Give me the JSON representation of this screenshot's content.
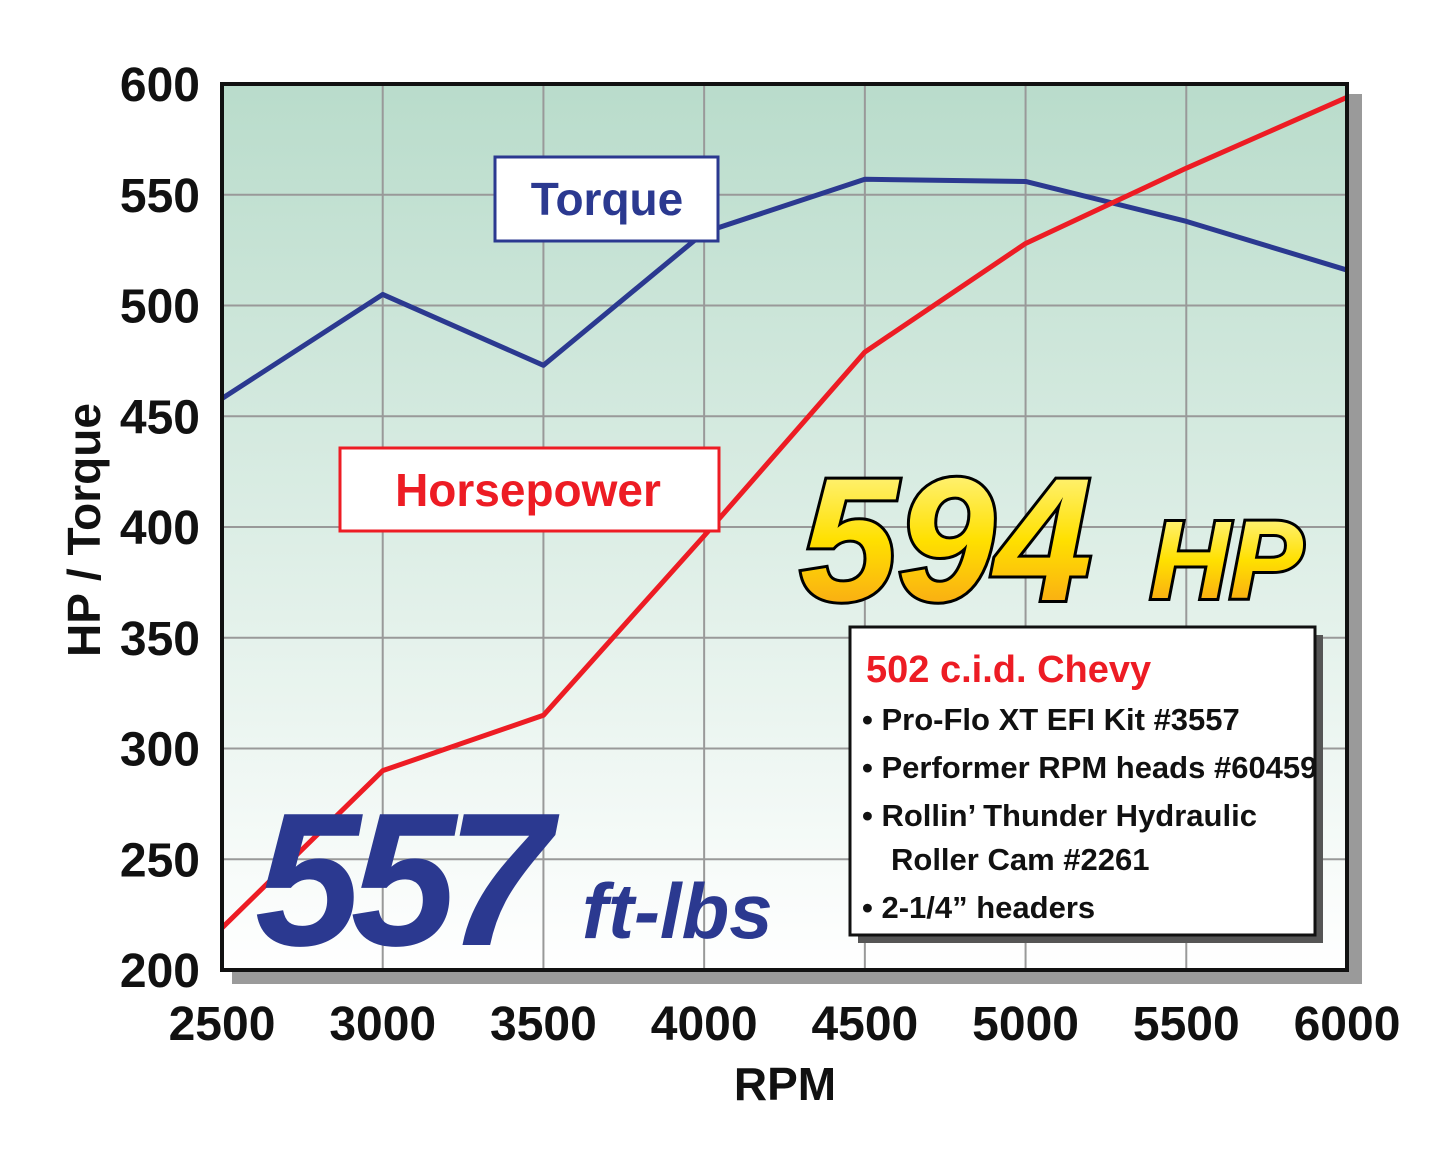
{
  "chart_data": {
    "type": "line",
    "xlabel": "RPM",
    "ylabel": "HP / Torque",
    "x": [
      2500,
      3000,
      3500,
      4000,
      4500,
      5000,
      5500,
      6000
    ],
    "xlim": [
      2500,
      6000
    ],
    "xticks": [
      2500,
      3000,
      3500,
      4000,
      4500,
      5000,
      5500,
      6000
    ],
    "ylim": [
      200,
      600
    ],
    "yticks": [
      200,
      250,
      300,
      350,
      400,
      450,
      500,
      550,
      600
    ],
    "grid": true,
    "series": [
      {
        "name": "Torque",
        "color": "#2b3990",
        "values": [
          458,
          505,
          473,
          533,
          557,
          556,
          538,
          516
        ]
      },
      {
        "name": "Horsepower",
        "color": "#ed1c24",
        "values": [
          219,
          290,
          315,
          396,
          479,
          528,
          562,
          594
        ]
      }
    ],
    "hp_callout": {
      "number": "594",
      "unit": "HP"
    },
    "torque_callout": {
      "number": "557",
      "unit": "ft-lbs"
    },
    "spec_box": {
      "title": "502 c.i.d. Chevy",
      "lines": [
        "• Pro-Flo XT EFI Kit #3557",
        "• Performer RPM heads #60459",
        "• Rollin’ Thunder Hydraulic",
        "Roller Cam #2261",
        "• 2-1/4” headers"
      ]
    }
  }
}
